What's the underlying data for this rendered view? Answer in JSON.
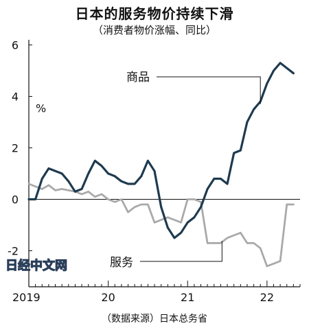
{
  "chart_data": {
    "type": "line",
    "title": "日本的服务物价持续下滑",
    "subtitle": "（消费者物价涨幅、同比）",
    "ylabel": "%",
    "ylim": [
      -3.4,
      6.2
    ],
    "yticks": [
      "6",
      "4",
      "2",
      "0",
      "-2"
    ],
    "xlim": [
      0,
      41
    ],
    "xticks": [
      {
        "label": "2019",
        "at": 0
      },
      {
        "label": "20",
        "at": 12
      },
      {
        "label": "21",
        "at": 24
      },
      {
        "label": "22",
        "at": 36
      }
    ],
    "series": [
      {
        "name": "商品",
        "color": "#1e3a4f",
        "values": [
          0.0,
          0.0,
          0.8,
          1.2,
          1.1,
          1.0,
          0.7,
          0.3,
          0.4,
          1.0,
          1.5,
          1.3,
          1.0,
          0.9,
          0.7,
          0.6,
          0.6,
          0.9,
          1.5,
          1.1,
          -0.3,
          -1.1,
          -1.5,
          -1.3,
          -0.9,
          -0.7,
          -0.3,
          0.4,
          0.8,
          0.8,
          0.6,
          1.8,
          1.9,
          3.0,
          3.5,
          3.8,
          4.5,
          5.0,
          5.3,
          5.1,
          4.9
        ]
      },
      {
        "name": "服务",
        "color": "#a9a9a9",
        "values": [
          0.6,
          0.5,
          0.4,
          0.55,
          0.35,
          0.4,
          0.35,
          0.3,
          0.2,
          0.3,
          0.1,
          0.2,
          0.0,
          -0.1,
          0.0,
          -0.5,
          -0.3,
          -0.2,
          -0.2,
          -0.9,
          -0.8,
          -0.7,
          -0.8,
          -0.9,
          0.0,
          0.0,
          -0.1,
          -1.7,
          -1.7,
          -1.7,
          -1.5,
          -1.4,
          -1.3,
          -1.7,
          -1.7,
          -1.9,
          -2.6,
          -2.5,
          -2.4,
          -0.2,
          -0.2
        ]
      }
    ],
    "annotations": [
      {
        "text": "商品",
        "series": 0
      },
      {
        "text": "服务",
        "series": 1
      }
    ],
    "source": "（数据来源）日本总务省",
    "grid": false
  },
  "watermark": "日经中文网"
}
